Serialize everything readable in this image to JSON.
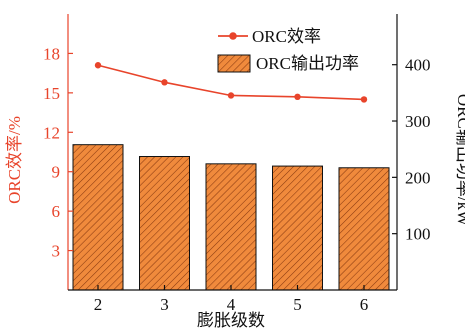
{
  "chart_data": {
    "type": "bar+line",
    "categories": [
      "2",
      "3",
      "4",
      "5",
      "6"
    ],
    "xlabel": "膨胀级数",
    "ylabel_left": "ORC效率/%",
    "ylabel_right": "ORC输出功率/kW",
    "ylim_left": [
      0,
      21
    ],
    "yticks_left": [
      3,
      6,
      9,
      12,
      15,
      18
    ],
    "ylim_right": [
      0,
      490
    ],
    "yticks_right": [
      100,
      200,
      300,
      400
    ],
    "series": [
      {
        "name": "ORC效率",
        "type": "line",
        "axis": "left",
        "values": [
          17.1,
          15.8,
          14.8,
          14.7,
          14.5
        ]
      },
      {
        "name": "ORC输出功率",
        "type": "bar",
        "axis": "right",
        "values": [
          258,
          237,
          224,
          220,
          217
        ]
      }
    ],
    "legend_position": "top-right",
    "colors": {
      "line": "#e8442b",
      "bar_fill": "#f08a3c",
      "bar_hatch": "#8a3a10",
      "left_axis": "#e8442b",
      "right_axis": "#111111"
    }
  }
}
